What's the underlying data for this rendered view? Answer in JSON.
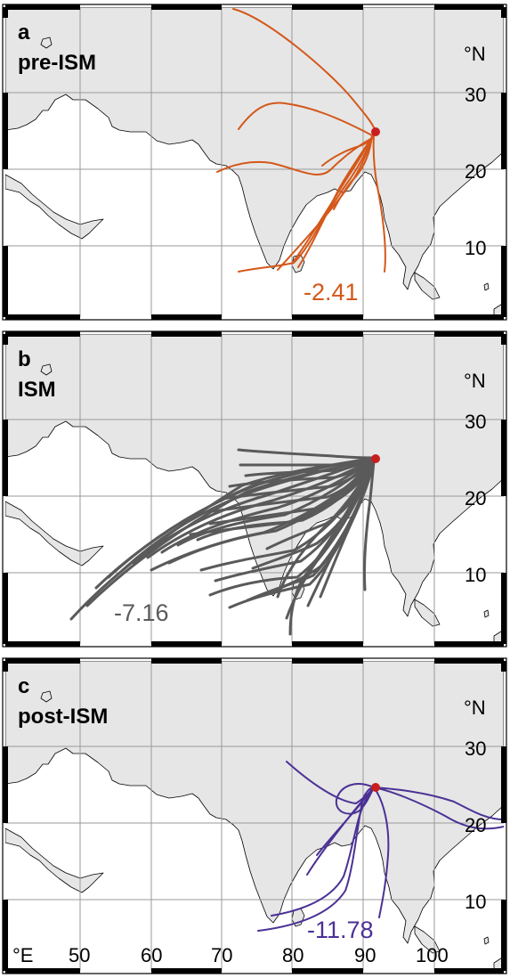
{
  "panels": [
    {
      "letter": "a",
      "season": "pre-ISM",
      "value_label": "-2.41",
      "track_color": "#d4581a",
      "lat_unit": "°N",
      "lat_ticks": [
        "30",
        "20",
        "10"
      ],
      "trajectory_count": 11
    },
    {
      "letter": "b",
      "season": "ISM",
      "value_label": "-7.16",
      "track_color": "#5a5a5a",
      "lat_unit": "°N",
      "lat_ticks": [
        "30",
        "20",
        "10"
      ],
      "trajectory_count": 34
    },
    {
      "letter": "c",
      "season": "post-ISM",
      "value_label": "-11.78",
      "track_color": "#4b3196",
      "lat_unit": "°N",
      "lat_ticks": [
        "30",
        "20",
        "10"
      ],
      "trajectory_count": 9
    }
  ],
  "lon_unit": "°E",
  "lon_ticks": [
    "50",
    "60",
    "70",
    "80",
    "90",
    "100"
  ],
  "colors": {
    "land": "#e6e6e6",
    "ocean": "#ffffff",
    "grid": "#9a9a9a",
    "source_marker": "#c81e1e",
    "frame_dark": "#000000"
  }
}
